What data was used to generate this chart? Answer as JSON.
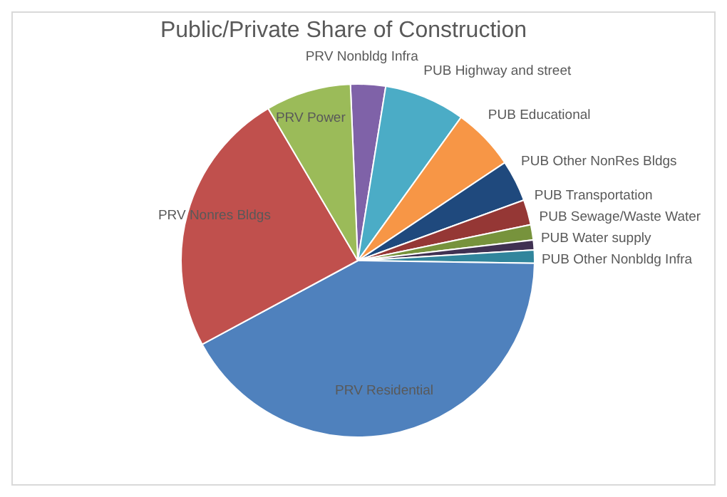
{
  "chart_data": {
    "type": "pie",
    "title": "Public/Private Share of Construction",
    "categories": [
      "PRV Nonbldg Infra",
      "PUB Highway and street",
      "PUB Educational",
      "PUB Other NonRes Bldgs",
      "PUB Transportation",
      "PUB Sewage/Waste Water",
      "PUB Water supply",
      "PUB Other Nonbldg Infra",
      "PRV Residential",
      "PRV Nonres Bldgs",
      "PRV Power"
    ],
    "values": [
      3.2,
      7.4,
      5.7,
      3.8,
      2.3,
      1.4,
      0.9,
      1.2,
      41.9,
      24.4,
      7.8
    ],
    "colors": [
      "#7f62a8",
      "#4bacc6",
      "#f79646",
      "#1f497d",
      "#953735",
      "#77933c",
      "#403152",
      "#31859c",
      "#4f81bd",
      "#c0504d",
      "#9bbb59"
    ]
  }
}
